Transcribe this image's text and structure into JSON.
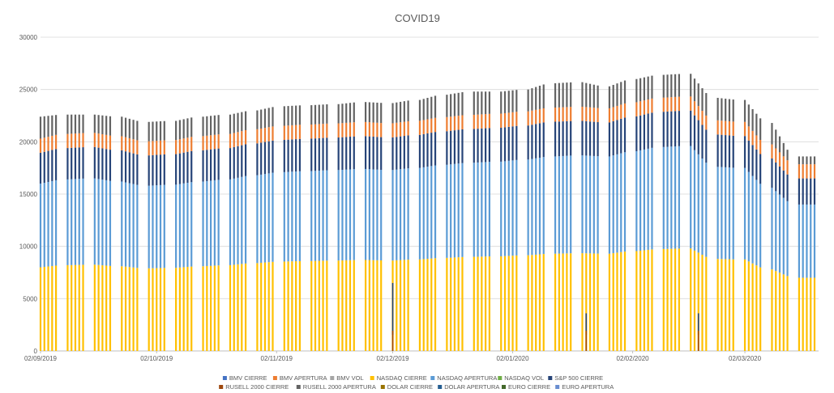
{
  "chart_data": {
    "type": "bar",
    "stacked": true,
    "title": "COVID19",
    "xlabel": "",
    "ylabel": "",
    "ylim": [
      0,
      30000
    ],
    "yticks": [
      0,
      5000,
      10000,
      15000,
      20000,
      25000,
      30000
    ],
    "grid": true,
    "legend_position": "bottom",
    "x_start": "2019-09-02",
    "x_end": "2020-03-20",
    "x_tick_labels": [
      "02/09/2019",
      "02/10/2019",
      "02/11/2019",
      "02/12/2019",
      "02/01/2020",
      "02/02/2020",
      "02/03/2020"
    ],
    "x_tick_dates": [
      "2019-09-02",
      "2019-10-02",
      "2019-11-02",
      "2019-12-02",
      "2020-01-02",
      "2020-02-02",
      "2020-03-02"
    ],
    "series": [
      {
        "name": "BMV CIERRE",
        "color": "#4472c4"
      },
      {
        "name": "BMV APERTURA",
        "color": "#ed7d31"
      },
      {
        "name": "BMV VOL",
        "color": "#a5a5a5"
      },
      {
        "name": "NASDAQ CIERRE",
        "color": "#ffc000"
      },
      {
        "name": "NASDAQ APERTURA",
        "color": "#5b9bd5"
      },
      {
        "name": "NASDAQ VOL",
        "color": "#70ad47"
      },
      {
        "name": "S&P 500 CIERRE",
        "color": "#264478"
      },
      {
        "name": "RUSELL 2000 CIERRE",
        "color": "#9e480e"
      },
      {
        "name": "RUSELL 2000 APERTURA",
        "color": "#636363"
      },
      {
        "name": "DOLAR CIERRE",
        "color": "#997300"
      },
      {
        "name": "DOLAR APERTURA",
        "color": "#255e91"
      },
      {
        "name": "EURO CIERRE",
        "color": "#43682b"
      },
      {
        "name": "EURO APERTURA",
        "color": "#698ed0"
      }
    ],
    "stack_order": [
      "NASDAQ CIERRE",
      "NASDAQ APERTURA",
      "S&P 500 CIERRE",
      "BMV APERTURA",
      "RUSELL 2000 APERTURA"
    ],
    "weekly_stack_totals": [
      {
        "week_of": "2019-09-02",
        "nasdaq": 8000,
        "sp500": 2950,
        "top": 22400
      },
      {
        "week_of": "2019-09-09",
        "nasdaq": 8200,
        "sp500": 3000,
        "top": 22600
      },
      {
        "week_of": "2019-09-16",
        "nasdaq": 8250,
        "sp500": 3000,
        "top": 22600
      },
      {
        "week_of": "2019-09-23",
        "nasdaq": 8100,
        "sp500": 2980,
        "top": 22400
      },
      {
        "week_of": "2019-09-30",
        "nasdaq": 7900,
        "sp500": 2900,
        "top": 21900
      },
      {
        "week_of": "2019-10-07",
        "nasdaq": 7950,
        "sp500": 2920,
        "top": 22000
      },
      {
        "week_of": "2019-10-14",
        "nasdaq": 8100,
        "sp500": 2990,
        "top": 22400
      },
      {
        "week_of": "2019-10-21",
        "nasdaq": 8200,
        "sp500": 3000,
        "top": 22600
      },
      {
        "week_of": "2019-10-28",
        "nasdaq": 8400,
        "sp500": 3050,
        "top": 23000
      },
      {
        "week_of": "2019-11-04",
        "nasdaq": 8550,
        "sp500": 3080,
        "top": 23400
      },
      {
        "week_of": "2019-11-11",
        "nasdaq": 8600,
        "sp500": 3100,
        "top": 23500
      },
      {
        "week_of": "2019-11-18",
        "nasdaq": 8650,
        "sp500": 3110,
        "top": 23600
      },
      {
        "week_of": "2019-11-25",
        "nasdaq": 8700,
        "sp500": 3140,
        "top": 23800
      },
      {
        "week_of": "2019-12-02",
        "nasdaq": 8650,
        "sp500": 3120,
        "top": 23700
      },
      {
        "week_of": "2019-12-09",
        "nasdaq": 8750,
        "sp500": 3160,
        "top": 24000
      },
      {
        "week_of": "2019-12-16",
        "nasdaq": 8900,
        "sp500": 3210,
        "top": 24500
      },
      {
        "week_of": "2019-12-23",
        "nasdaq": 9000,
        "sp500": 3230,
        "top": 24800
      },
      {
        "week_of": "2019-12-30",
        "nasdaq": 9050,
        "sp500": 3240,
        "top": 24800
      },
      {
        "week_of": "2020-01-06",
        "nasdaq": 9150,
        "sp500": 3260,
        "top": 25000
      },
      {
        "week_of": "2020-01-13",
        "nasdaq": 9300,
        "sp500": 3320,
        "top": 25600
      },
      {
        "week_of": "2020-01-20",
        "nasdaq": 9350,
        "sp500": 3300,
        "top": 25700
      },
      {
        "week_of": "2020-01-27",
        "nasdaq": 9300,
        "sp500": 3250,
        "top": 25300
      },
      {
        "week_of": "2020-02-03",
        "nasdaq": 9550,
        "sp500": 3330,
        "top": 26000
      },
      {
        "week_of": "2020-02-10",
        "nasdaq": 9750,
        "sp500": 3370,
        "top": 26400
      },
      {
        "week_of": "2020-02-17",
        "nasdaq": 9800,
        "sp500": 3380,
        "top": 26500
      },
      {
        "week_of": "2020-02-24",
        "nasdaq": 8800,
        "sp500": 3100,
        "top": 24200
      },
      {
        "week_of": "2020-03-02",
        "nasdaq": 8750,
        "sp500": 3050,
        "top": 24000
      },
      {
        "week_of": "2020-03-09",
        "nasdaq": 7800,
        "sp500": 2800,
        "top": 21800
      },
      {
        "week_of": "2020-03-16",
        "nasdaq": 7000,
        "sp500": 2500,
        "top": 18600
      }
    ],
    "spikes": [
      {
        "date": "2019-12-02",
        "value": 6500
      },
      {
        "date": "2020-01-21",
        "value": 3600
      },
      {
        "date": "2020-02-19",
        "value": 3600
      }
    ]
  }
}
